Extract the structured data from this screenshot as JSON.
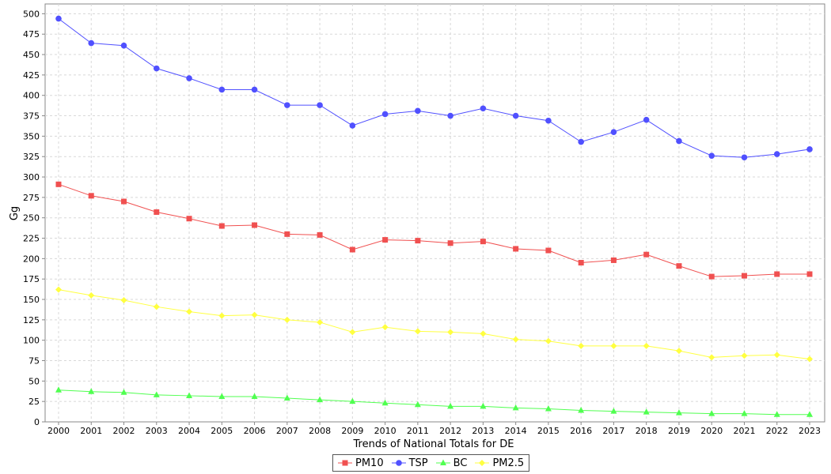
{
  "chart_data": {
    "type": "line",
    "title": "",
    "xlabel": "Trends of National Totals for DE",
    "ylabel": "Gg",
    "ylim": [
      0,
      512
    ],
    "yticks": [
      0,
      25,
      50,
      75,
      100,
      125,
      150,
      175,
      200,
      225,
      250,
      275,
      300,
      325,
      350,
      375,
      400,
      425,
      450,
      475,
      500
    ],
    "grid": true,
    "legend_position": "bottom",
    "categories": [
      "2000",
      "2001",
      "2002",
      "2003",
      "2004",
      "2005",
      "2006",
      "2007",
      "2008",
      "2009",
      "2010",
      "2011",
      "2012",
      "2013",
      "2014",
      "2015",
      "2016",
      "2017",
      "2018",
      "2019",
      "2020",
      "2021",
      "2022",
      "2023"
    ],
    "series": [
      {
        "name": "PM10",
        "color": "#f05050",
        "marker": "square",
        "values": [
          291,
          277,
          270,
          257,
          249,
          240,
          241,
          230,
          229,
          211,
          223,
          222,
          219,
          221,
          212,
          210,
          195,
          198,
          205,
          191,
          178,
          179,
          181,
          181
        ]
      },
      {
        "name": "TSP",
        "color": "#5050ff",
        "marker": "circle",
        "values": [
          494,
          464,
          461,
          433,
          421,
          407,
          407,
          388,
          388,
          363,
          377,
          381,
          375,
          384,
          375,
          369,
          343,
          355,
          370,
          344,
          326,
          324,
          328,
          334
        ]
      },
      {
        "name": "BC",
        "color": "#50ff50",
        "marker": "triangle",
        "values": [
          39,
          37,
          36,
          33,
          32,
          31,
          31,
          29,
          27,
          25,
          23,
          21,
          19,
          19,
          17,
          16,
          14,
          13,
          12,
          11,
          10,
          10,
          9,
          9
        ]
      },
      {
        "name": "PM2.5",
        "color": "#ffff40",
        "marker": "diamond",
        "values": [
          162,
          155,
          149,
          141,
          135,
          130,
          131,
          125,
          122,
          110,
          116,
          111,
          110,
          108,
          101,
          99,
          93,
          93,
          93,
          87,
          79,
          81,
          82,
          77
        ]
      }
    ]
  }
}
